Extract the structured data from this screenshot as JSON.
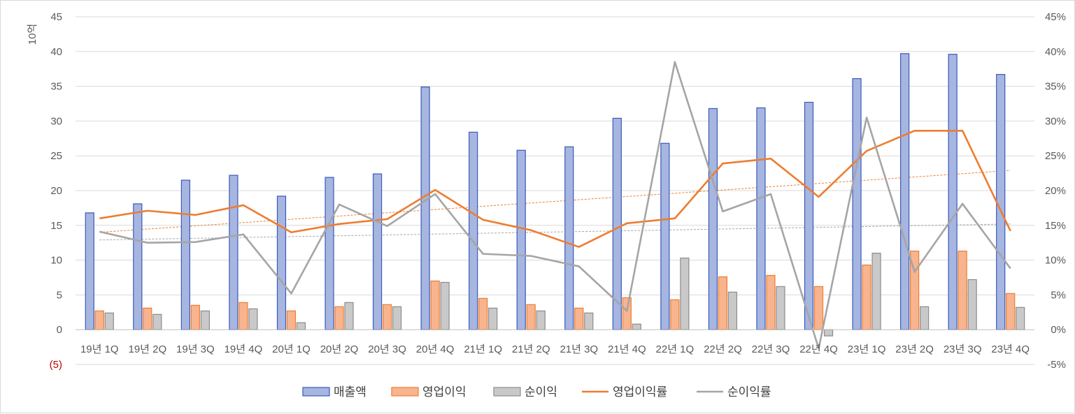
{
  "chart_data": {
    "type": "bar",
    "categories": [
      "19년 1Q",
      "19년 2Q",
      "19년 3Q",
      "19년 4Q",
      "20년 1Q",
      "20년 2Q",
      "20년 3Q",
      "20년 4Q",
      "21년 1Q",
      "21년 2Q",
      "21년 3Q",
      "21년 4Q",
      "22년 1Q",
      "22년 2Q",
      "22년 3Q",
      "22년 4Q",
      "23년 1Q",
      "23년 2Q",
      "23년 3Q",
      "23년 4Q"
    ],
    "ylabel": "10억",
    "ylim": [
      -5,
      45
    ],
    "y_ticks": [
      {
        "value": 45,
        "label": "45"
      },
      {
        "value": 40,
        "label": "40"
      },
      {
        "value": 35,
        "label": "35"
      },
      {
        "value": 30,
        "label": "30"
      },
      {
        "value": 25,
        "label": "25"
      },
      {
        "value": 20,
        "label": "20"
      },
      {
        "value": 15,
        "label": "15"
      },
      {
        "value": 10,
        "label": "10"
      },
      {
        "value": 5,
        "label": "5"
      },
      {
        "value": 0,
        "label": "0"
      },
      {
        "value": -5,
        "label": "(5)",
        "color": "#c00000"
      }
    ],
    "y2lim": [
      -0.05,
      0.45
    ],
    "y2_ticks": [
      {
        "value": 0.45,
        "label": "45%"
      },
      {
        "value": 0.4,
        "label": "40%"
      },
      {
        "value": 0.35,
        "label": "35%"
      },
      {
        "value": 0.3,
        "label": "30%"
      },
      {
        "value": 0.25,
        "label": "25%"
      },
      {
        "value": 0.2,
        "label": "20%"
      },
      {
        "value": 0.15,
        "label": "15%"
      },
      {
        "value": 0.1,
        "label": "10%"
      },
      {
        "value": 0.05,
        "label": "5%"
      },
      {
        "value": 0.0,
        "label": "0%"
      },
      {
        "value": -0.05,
        "label": "-5%"
      }
    ],
    "grid": "horizontal",
    "legend_position": "bottom",
    "bar_series": [
      {
        "name": "매출액",
        "fill": "#a6b6e0",
        "stroke": "#3a5ab8",
        "values": [
          16.8,
          18.1,
          21.5,
          22.2,
          19.2,
          21.9,
          22.4,
          34.9,
          28.4,
          25.8,
          26.3,
          30.4,
          26.8,
          31.8,
          31.9,
          32.7,
          36.1,
          39.7,
          39.6,
          36.7
        ]
      },
      {
        "name": "영업이익",
        "fill": "#f8b48f",
        "stroke": "#ed7d31",
        "values": [
          2.7,
          3.1,
          3.5,
          3.9,
          2.7,
          3.3,
          3.6,
          7.0,
          4.5,
          3.6,
          3.1,
          4.6,
          4.3,
          7.6,
          7.8,
          6.2,
          9.3,
          11.3,
          11.3,
          5.2
        ]
      },
      {
        "name": "순이익",
        "fill": "#c9c9c9",
        "stroke": "#8c8c8c",
        "values": [
          2.4,
          2.2,
          2.7,
          3.0,
          1.0,
          3.9,
          3.3,
          6.8,
          3.1,
          2.7,
          2.4,
          0.8,
          10.3,
          5.4,
          6.2,
          -0.9,
          11.0,
          3.3,
          7.2,
          3.2
        ]
      }
    ],
    "line_series": [
      {
        "name": "영업이익률",
        "color": "#ed7d31",
        "axis": "right",
        "values": [
          0.16,
          0.171,
          0.165,
          0.179,
          0.14,
          0.152,
          0.159,
          0.201,
          0.158,
          0.143,
          0.119,
          0.153,
          0.16,
          0.239,
          0.246,
          0.191,
          0.257,
          0.286,
          0.286,
          0.142
        ]
      },
      {
        "name": "순이익률",
        "color": "#a5a5a5",
        "axis": "right",
        "values": [
          0.141,
          0.125,
          0.126,
          0.137,
          0.052,
          0.18,
          0.149,
          0.195,
          0.109,
          0.106,
          0.091,
          0.027,
          0.385,
          0.17,
          0.195,
          -0.027,
          0.305,
          0.083,
          0.181,
          0.088
        ]
      }
    ],
    "trendlines": [
      {
        "of": "영업이익률",
        "color": "#ed7d31",
        "style": "dashed",
        "start": 0.14,
        "end": 0.229
      },
      {
        "of": "순이익률",
        "color": "#a5a5a5",
        "style": "dashed",
        "start": 0.129,
        "end": 0.152
      }
    ]
  }
}
